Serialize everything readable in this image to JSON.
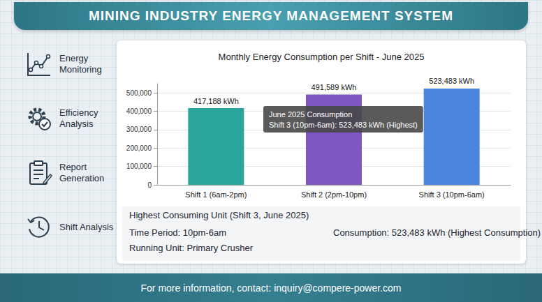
{
  "header": "MINING INDUSTRY ENERGY MANAGEMENT SYSTEM",
  "sidebar": [
    "Energy Monitoring",
    "Efficiency Analysis",
    "Report Generation",
    "Shift Analysis"
  ],
  "chart_data": {
    "type": "bar",
    "title": "Monthly Energy Consumption per Shift - June 2025",
    "categories": [
      "Shift 1 (6am-2pm)",
      "Shift 2 (2pm-10pm)",
      "Shift 3 (10pm-6am)"
    ],
    "values": [
      417188,
      491589,
      523483
    ],
    "value_labels": [
      "417,188 kWh",
      "491,589 kWh",
      "523,483 kWh"
    ],
    "colors": [
      "#2aa59c",
      "#7e57c2",
      "#4a86e0"
    ],
    "ylim": [
      0,
      550000
    ],
    "yticks": [
      0,
      {
        "value": 100000,
        "label": "100,000"
      },
      {
        "value": 200000,
        "label": "200,000"
      },
      {
        "value": 300000,
        "label": "300,000"
      },
      {
        "value": 400000,
        "label": "400,000"
      },
      {
        "value": 500000,
        "label": "500,000"
      }
    ],
    "grid": true,
    "data_labels": true,
    "annotation": [
      "June 2025 Consumption",
      "Shift 3 (10pm-6am): 523,483 kWh (Highest)"
    ]
  },
  "info": {
    "title": "Highest Consuming Unit (Shift 3, June 2025)",
    "rows": [
      [
        "Time Period: 10pm-6am",
        "Consumption: 523,483 kWh (Highest Consumption)"
      ],
      [
        "Running Unit: Primary Crusher"
      ]
    ]
  },
  "footer": "For more information, contact: inquiry@compere-power.com"
}
